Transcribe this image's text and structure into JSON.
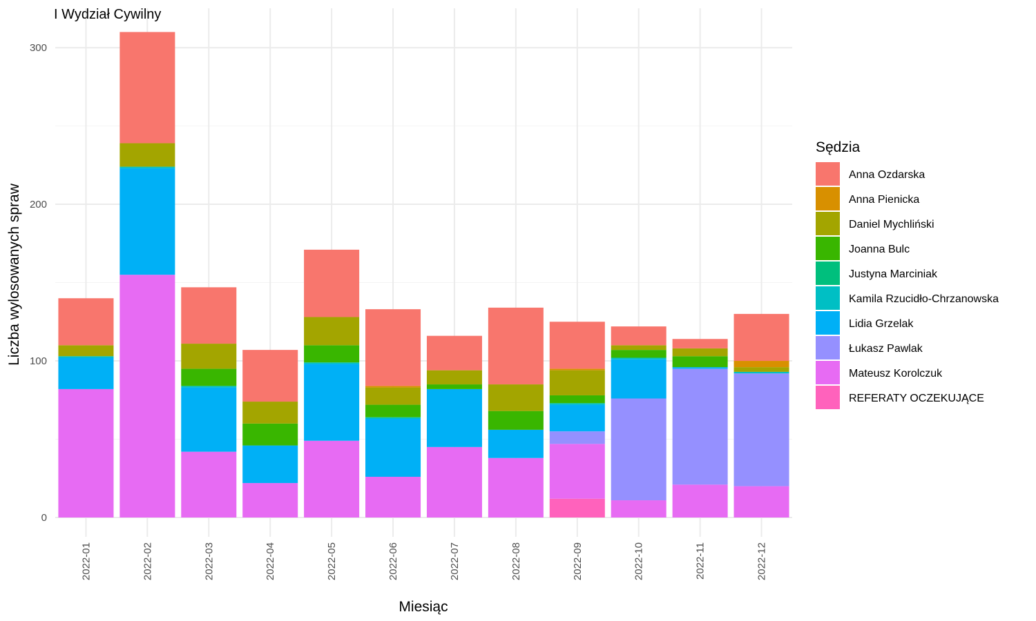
{
  "chart_data": {
    "type": "bar",
    "stacked": true,
    "title": "I Wydział Cywilny",
    "xlabel": "Miesiąc",
    "ylabel": "Liczba wylosowanych spraw",
    "ylim": [
      0,
      310
    ],
    "yticks": [
      0,
      100,
      200,
      300
    ],
    "grid": true,
    "legend_title": "Sędzia",
    "legend_position": "right",
    "categories": [
      "2022-01",
      "2022-02",
      "2022-03",
      "2022-04",
      "2022-05",
      "2022-06",
      "2022-07",
      "2022-08",
      "2022-09",
      "2022-10",
      "2022-11",
      "2022-12"
    ],
    "series": [
      {
        "name": "Anna Ozdarska",
        "color": "#F8766D",
        "values": [
          30,
          71,
          36,
          33,
          43,
          49,
          22,
          49,
          30,
          12,
          6,
          30
        ]
      },
      {
        "name": "Anna Pienicka",
        "color": "#D89000",
        "values": [
          0,
          0,
          0,
          0,
          0,
          1,
          0,
          0,
          1,
          0,
          0,
          4
        ]
      },
      {
        "name": "Daniel Mychliński",
        "color": "#A3A500",
        "values": [
          7,
          15,
          16,
          14,
          18,
          11,
          9,
          17,
          16,
          3,
          5,
          3
        ]
      },
      {
        "name": "Joanna Bulc",
        "color": "#39B600",
        "values": [
          0,
          0,
          11,
          14,
          11,
          8,
          3,
          12,
          5,
          5,
          7,
          0
        ]
      },
      {
        "name": "Justyna Marciniak",
        "color": "#00BF7D",
        "values": [
          0,
          0,
          0,
          0,
          0,
          0,
          0,
          0,
          0,
          0,
          0,
          0
        ]
      },
      {
        "name": "Kamila Rzucidło-Chrzanowska",
        "color": "#00BFC4",
        "values": [
          1,
          1,
          1,
          0,
          1,
          1,
          0,
          0,
          1,
          1,
          0,
          1
        ]
      },
      {
        "name": "Lidia Grzelak",
        "color": "#00B0F6",
        "values": [
          20,
          68,
          41,
          24,
          49,
          37,
          37,
          18,
          17,
          25,
          1,
          0
        ]
      },
      {
        "name": "Łukasz Pawlak",
        "color": "#9590FF",
        "values": [
          0,
          0,
          0,
          0,
          0,
          0,
          0,
          0,
          8,
          65,
          74,
          72
        ]
      },
      {
        "name": "Mateusz Korolczuk",
        "color": "#E76BF3",
        "values": [
          82,
          155,
          42,
          22,
          49,
          26,
          45,
          38,
          35,
          11,
          21,
          20
        ]
      },
      {
        "name": "REFERATY OCZEKUJĄCE",
        "color": "#FF62BC",
        "values": [
          0,
          0,
          0,
          0,
          0,
          0,
          0,
          0,
          12,
          0,
          0,
          0
        ]
      }
    ]
  }
}
